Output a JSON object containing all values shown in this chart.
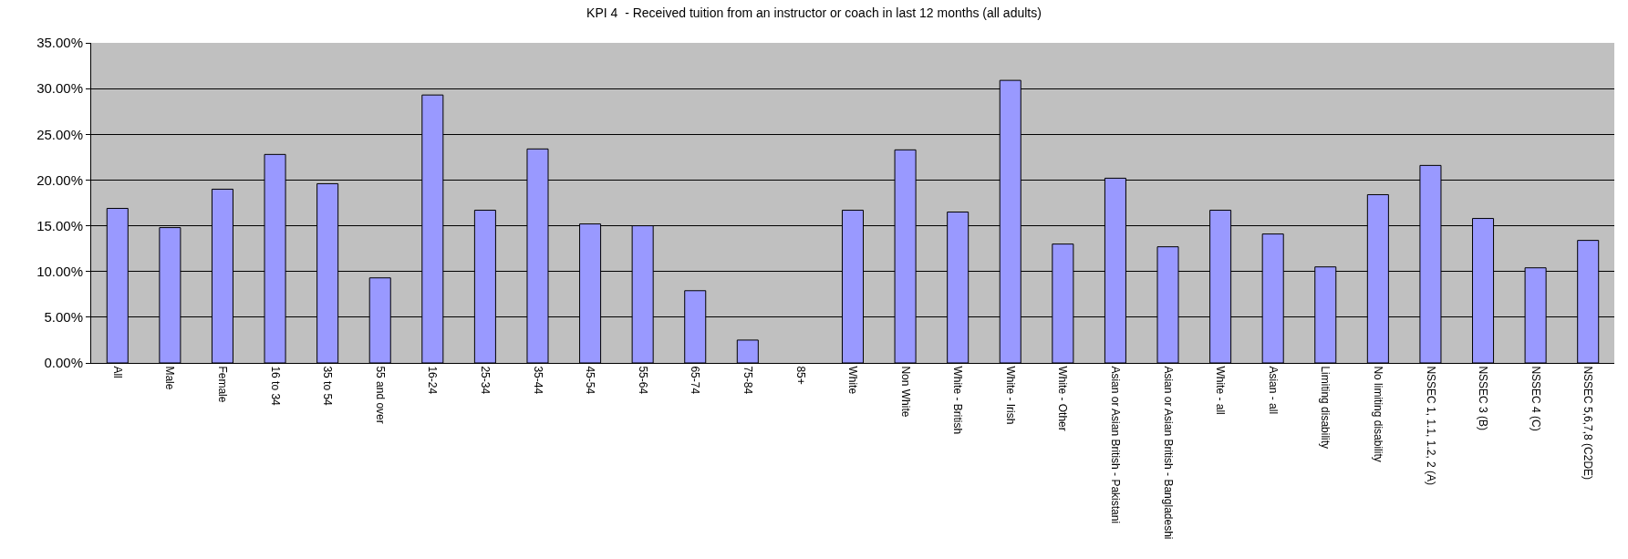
{
  "chart_data": {
    "type": "bar",
    "title": "KPI 4  - Received tuition from an instructor or coach in last 12 months (all adults)",
    "categories": [
      "All",
      "Male",
      "Female",
      "16 to 34",
      "35 to 54",
      "55 and over",
      "16-24",
      "25-34",
      "35-44",
      "45-54",
      "55-64",
      "65-74",
      "75-84",
      "85+",
      "White",
      "Non White",
      "White - British",
      "White - Irish",
      "White - Other",
      "Asian or Asian British - Pakistani",
      "Asian or Asian British - Bangladeshi",
      "White - all",
      "Asian - all",
      "Limiting disability",
      "No limiting disability",
      "NSSEC 1, 1.1, 1.2, 2 (A)",
      "NSSEC 3 (B)",
      "NSSEC 4 (C)",
      "NSSEC 5,6,7,8 (C2DE)"
    ],
    "values": [
      16.9,
      14.8,
      19.0,
      22.8,
      19.6,
      9.3,
      29.3,
      16.7,
      23.4,
      15.2,
      15.0,
      7.9,
      2.5,
      null,
      16.7,
      23.3,
      16.5,
      30.9,
      13.0,
      20.2,
      12.7,
      16.7,
      14.1,
      10.5,
      18.4,
      21.6,
      15.8,
      10.4,
      13.4
    ],
    "color": "#9999ff",
    "ylim": [
      0,
      35
    ],
    "yticks": [
      {
        "value": 0,
        "label": "0.00%"
      },
      {
        "value": 5,
        "label": "5.00%"
      },
      {
        "value": 10,
        "label": "10.00%"
      },
      {
        "value": 15,
        "label": "15.00%"
      },
      {
        "value": 20,
        "label": "20.00%"
      },
      {
        "value": 25,
        "label": "25.00%"
      },
      {
        "value": 30,
        "label": "30.00%"
      },
      {
        "value": 35,
        "label": "35.00%"
      }
    ],
    "grid": "y"
  }
}
